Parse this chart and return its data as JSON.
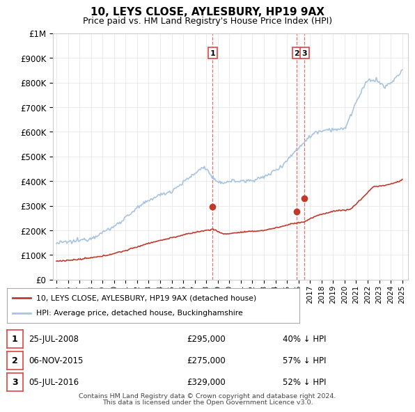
{
  "title": "10, LEYS CLOSE, AYLESBURY, HP19 9AX",
  "subtitle": "Price paid vs. HM Land Registry's House Price Index (HPI)",
  "ylim": [
    0,
    1000000
  ],
  "yticks": [
    0,
    100000,
    200000,
    300000,
    400000,
    500000,
    600000,
    700000,
    800000,
    900000,
    1000000
  ],
  "ytick_labels": [
    "£0",
    "£100K",
    "£200K",
    "£300K",
    "£400K",
    "£500K",
    "£600K",
    "£700K",
    "£800K",
    "£900K",
    "£1M"
  ],
  "hpi_color": "#a8c4e0",
  "price_color": "#c0392b",
  "vline_color": "#e05050",
  "background_color": "#ffffff",
  "grid_color": "#e8e8e8",
  "transactions": [
    {
      "label": "1",
      "date": "25-JUL-2008",
      "price": 295000,
      "pct": "40% ↓ HPI",
      "x_year": 2008.56
    },
    {
      "label": "2",
      "date": "06-NOV-2015",
      "price": 275000,
      "pct": "57% ↓ HPI",
      "x_year": 2015.85
    },
    {
      "label": "3",
      "date": "05-JUL-2016",
      "price": 329000,
      "pct": "52% ↓ HPI",
      "x_year": 2016.51
    }
  ],
  "legend_entries": [
    {
      "label": "10, LEYS CLOSE, AYLESBURY, HP19 9AX (detached house)",
      "color": "#c0392b"
    },
    {
      "label": "HPI: Average price, detached house, Buckinghamshire",
      "color": "#a8c4e0"
    }
  ],
  "footnote1": "Contains HM Land Registry data © Crown copyright and database right 2024.",
  "footnote2": "This data is licensed under the Open Government Licence v3.0.",
  "xlim": [
    1994.7,
    2025.5
  ],
  "xticks": [
    1995,
    1996,
    1997,
    1998,
    1999,
    2000,
    2001,
    2002,
    2003,
    2004,
    2005,
    2006,
    2007,
    2008,
    2009,
    2010,
    2011,
    2012,
    2013,
    2014,
    2015,
    2016,
    2017,
    2018,
    2019,
    2020,
    2021,
    2022,
    2023,
    2024,
    2025
  ]
}
